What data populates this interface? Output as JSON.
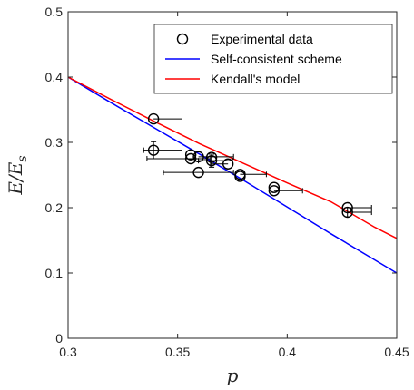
{
  "chart_data": {
    "type": "scatter",
    "title": "",
    "xlabel": "p",
    "ylabel_main": "E/E",
    "ylabel_sub": "s",
    "xlim": [
      0.3,
      0.45
    ],
    "ylim": [
      0,
      0.5
    ],
    "xticks": [
      0.3,
      0.35,
      0.4,
      0.45
    ],
    "xtick_labels": [
      "0.3",
      "0.35",
      "0.4",
      "0.45"
    ],
    "yticks": [
      0,
      0.1,
      0.2,
      0.3,
      0.4,
      0.5
    ],
    "ytick_labels": [
      "0",
      "0.1",
      "0.2",
      "0.3",
      "0.4",
      "0.5"
    ],
    "grid": false,
    "legend_position": "top-right",
    "series": [
      {
        "name": "Experimental data",
        "kind": "errorbar-markers",
        "color": "#000000",
        "marker": "open-circle",
        "points": [
          {
            "x": 0.339,
            "y": 0.336,
            "xerr": [
              0.0,
              0.013
            ],
            "yerr": 0.0
          },
          {
            "x": 0.339,
            "y": 0.288,
            "xerr": [
              0.0045,
              0.013
            ],
            "yerr": 0.013
          },
          {
            "x": 0.356,
            "y": 0.281,
            "xerr": [
              0.0,
              0.0
            ],
            "yerr": 0.0
          },
          {
            "x": 0.356,
            "y": 0.275,
            "xerr": [
              0.02,
              0.009
            ],
            "yerr": 0.0
          },
          {
            "x": 0.3595,
            "y": 0.278,
            "xerr": [
              0.0,
              0.016
            ],
            "yerr": 0.0
          },
          {
            "x": 0.3595,
            "y": 0.254,
            "xerr": [
              0.016,
              0.016
            ],
            "yerr": 0.0
          },
          {
            "x": 0.3655,
            "y": 0.277,
            "xerr": [
              0.0,
              0.0
            ],
            "yerr": 0.0
          },
          {
            "x": 0.3655,
            "y": 0.272,
            "xerr": [
              0.006,
              0.0095
            ],
            "yerr": 0.01
          },
          {
            "x": 0.373,
            "y": 0.267,
            "xerr": [
              0.008,
              0.0
            ],
            "yerr": 0.0
          },
          {
            "x": 0.3785,
            "y": 0.251,
            "xerr": [
              0.0,
              0.012
            ],
            "yerr": 0.0
          },
          {
            "x": 0.3785,
            "y": 0.248,
            "xerr": [
              0.0,
              0.0
            ],
            "yerr": 0.0
          },
          {
            "x": 0.394,
            "y": 0.231,
            "xerr": [
              0.0,
              0.0
            ],
            "yerr": 0.0
          },
          {
            "x": 0.394,
            "y": 0.226,
            "xerr": [
              0.0,
              0.013
            ],
            "yerr": 0.0
          },
          {
            "x": 0.4275,
            "y": 0.2,
            "xerr": [
              0.0,
              0.011
            ],
            "yerr": 0.0
          },
          {
            "x": 0.4275,
            "y": 0.193,
            "xerr": [
              0.0,
              0.011
            ],
            "yerr": 0.007
          }
        ]
      },
      {
        "name": "Self-consistent scheme",
        "kind": "line",
        "color": "#0000ff",
        "x": [
          0.3,
          0.32,
          0.34,
          0.36,
          0.38,
          0.4,
          0.42,
          0.44,
          0.45
        ],
        "y": [
          0.4,
          0.36,
          0.321,
          0.282,
          0.242,
          0.201,
          0.16,
          0.12,
          0.1
        ]
      },
      {
        "name": "Kendall's model",
        "kind": "line",
        "color": "#ff0000",
        "x": [
          0.3,
          0.32,
          0.34,
          0.36,
          0.38,
          0.4,
          0.42,
          0.44,
          0.45
        ],
        "y": [
          0.4,
          0.365,
          0.331,
          0.298,
          0.268,
          0.238,
          0.209,
          0.17,
          0.153
        ]
      }
    ]
  }
}
